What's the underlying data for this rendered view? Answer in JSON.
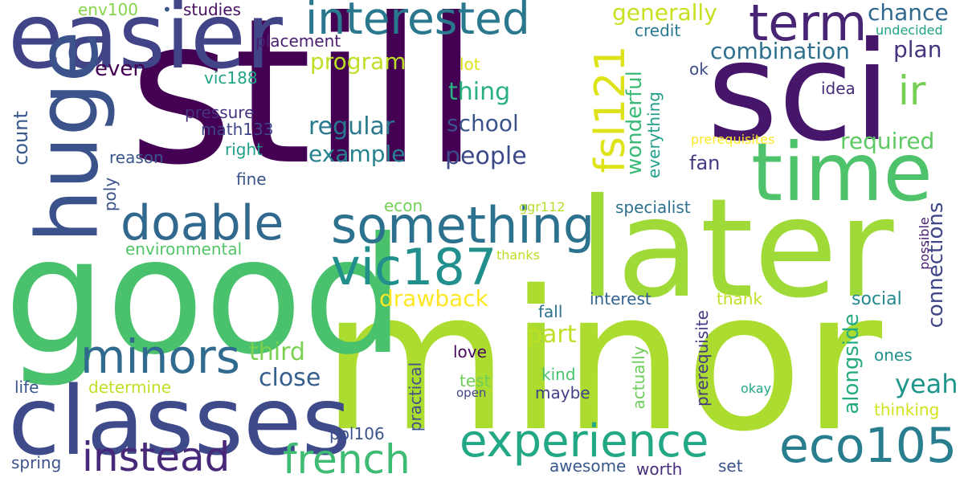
{
  "words": [
    {
      "text": "still",
      "color": "#440154",
      "weight": 1.0,
      "orientation": "horizontal"
    },
    {
      "text": "minor",
      "color": "#addc30",
      "weight": 0.95,
      "orientation": "horizontal"
    },
    {
      "text": "good",
      "color": "#4ac16d",
      "weight": 0.8,
      "orientation": "horizontal"
    },
    {
      "text": "later",
      "color": "#a0da39",
      "weight": 0.75,
      "orientation": "horizontal"
    },
    {
      "text": "sci",
      "color": "#46166b",
      "weight": 0.7,
      "orientation": "horizontal"
    },
    {
      "text": "classes",
      "color": "#3e4a89",
      "weight": 0.6,
      "orientation": "horizontal"
    },
    {
      "text": "easier",
      "color": "#414487",
      "weight": 0.55,
      "orientation": "horizontal"
    },
    {
      "text": "huge",
      "color": "#3b528b",
      "weight": 0.55,
      "orientation": "vertical"
    },
    {
      "text": "time",
      "color": "#4ec36b",
      "weight": 0.5,
      "orientation": "horizontal"
    },
    {
      "text": "term",
      "color": "#482475",
      "weight": 0.35,
      "orientation": "horizontal"
    },
    {
      "text": "something",
      "color": "#2c728e",
      "weight": 0.35,
      "orientation": "horizontal"
    },
    {
      "text": "doable",
      "color": "#31688e",
      "weight": 0.35,
      "orientation": "horizontal"
    },
    {
      "text": "minors",
      "color": "#306a8e",
      "weight": 0.35,
      "orientation": "horizontal"
    },
    {
      "text": "vic187",
      "color": "#21908d",
      "weight": 0.35,
      "orientation": "horizontal"
    },
    {
      "text": "eco105",
      "color": "#287d8e",
      "weight": 0.35,
      "orientation": "horizontal"
    },
    {
      "text": "experience",
      "color": "#22a884",
      "weight": 0.35,
      "orientation": "horizontal"
    },
    {
      "text": "interested",
      "color": "#2a788e",
      "weight": 0.33,
      "orientation": "horizontal"
    },
    {
      "text": "instead",
      "color": "#482878",
      "weight": 0.3,
      "orientation": "horizontal"
    },
    {
      "text": "french",
      "color": "#3fbc73",
      "weight": 0.3,
      "orientation": "horizontal"
    },
    {
      "text": "fsl121",
      "color": "#dde318",
      "weight": 0.3,
      "orientation": "vertical"
    },
    {
      "text": "ir",
      "color": "#75d054",
      "weight": 0.28,
      "orientation": "horizontal"
    },
    {
      "text": "plan",
      "color": "#46337e",
      "weight": 0.2,
      "orientation": "horizontal"
    },
    {
      "text": "combination",
      "color": "#2e6f8e",
      "weight": 0.2,
      "orientation": "horizontal"
    },
    {
      "text": "chance",
      "color": "#31688e",
      "weight": 0.2,
      "orientation": "horizontal"
    },
    {
      "text": "generally",
      "color": "#c8e020",
      "weight": 0.2,
      "orientation": "horizontal"
    },
    {
      "text": "program",
      "color": "#bddf26",
      "weight": 0.2,
      "orientation": "horizontal"
    },
    {
      "text": "thing",
      "color": "#2ab07f",
      "weight": 0.2,
      "orientation": "horizontal"
    },
    {
      "text": "regular",
      "color": "#29798e",
      "weight": 0.2,
      "orientation": "horizontal"
    },
    {
      "text": "school",
      "color": "#3b528b",
      "weight": 0.2,
      "orientation": "horizontal"
    },
    {
      "text": "example",
      "color": "#26828e",
      "weight": 0.2,
      "orientation": "horizontal"
    },
    {
      "text": "people",
      "color": "#3e4989",
      "weight": 0.2,
      "orientation": "horizontal"
    },
    {
      "text": "required",
      "color": "#5ec962",
      "weight": 0.2,
      "orientation": "horizontal"
    },
    {
      "text": "wonderful",
      "color": "#3aba76",
      "weight": 0.2,
      "orientation": "vertical"
    },
    {
      "text": "connections",
      "color": "#3f4788",
      "weight": 0.2,
      "orientation": "vertical"
    },
    {
      "text": "drawback",
      "color": "#fde725",
      "weight": 0.2,
      "orientation": "horizontal"
    },
    {
      "text": "part",
      "color": "#bddf26",
      "weight": 0.2,
      "orientation": "horizontal"
    },
    {
      "text": "third",
      "color": "#7ad151",
      "weight": 0.2,
      "orientation": "horizontal"
    },
    {
      "text": "close",
      "color": "#355f8d",
      "weight": 0.2,
      "orientation": "horizontal"
    },
    {
      "text": "alongside",
      "color": "#25ab82",
      "weight": 0.2,
      "orientation": "vertical"
    },
    {
      "text": "yeah",
      "color": "#1f968b",
      "weight": 0.2,
      "orientation": "horizontal"
    },
    {
      "text": "even",
      "color": "#440154",
      "weight": 0.15,
      "orientation": "horizontal"
    },
    {
      "text": "fan",
      "color": "#443983",
      "weight": 0.15,
      "orientation": "horizontal"
    },
    {
      "text": "count",
      "color": "#38598c",
      "weight": 0.15,
      "orientation": "vertical"
    },
    {
      "text": "placement",
      "color": "#481f70",
      "weight": 0.12,
      "orientation": "horizontal"
    },
    {
      "text": "credit",
      "color": "#2a788e",
      "weight": 0.12,
      "orientation": "horizontal"
    },
    {
      "text": "undecided",
      "color": "#20a386",
      "weight": 0.1,
      "orientation": "horizontal"
    },
    {
      "text": "env100",
      "color": "#86d549",
      "weight": 0.12,
      "orientation": "horizontal"
    },
    {
      "text": "studies",
      "color": "#471063",
      "weight": 0.12,
      "orientation": "horizontal"
    },
    {
      "text": "lot",
      "color": "#dde318",
      "weight": 0.12,
      "orientation": "horizontal"
    },
    {
      "text": "vic188",
      "color": "#20a486",
      "weight": 0.12,
      "orientation": "horizontal"
    },
    {
      "text": "ok",
      "color": "#3e4c8a",
      "weight": 0.12,
      "orientation": "horizontal"
    },
    {
      "text": "idea",
      "color": "#472c7a",
      "weight": 0.12,
      "orientation": "horizontal"
    },
    {
      "text": "pressure",
      "color": "#46327e",
      "weight": 0.12,
      "orientation": "horizontal"
    },
    {
      "text": "math133",
      "color": "#404688",
      "weight": 0.12,
      "orientation": "horizontal"
    },
    {
      "text": "right",
      "color": "#1fa188",
      "weight": 0.12,
      "orientation": "horizontal"
    },
    {
      "text": "reason",
      "color": "#39568c",
      "weight": 0.12,
      "orientation": "horizontal"
    },
    {
      "text": "fine",
      "color": "#3b528b",
      "weight": 0.12,
      "orientation": "horizontal"
    },
    {
      "text": "poly",
      "color": "#3b528b",
      "weight": 0.12,
      "orientation": "vertical"
    },
    {
      "text": "everything",
      "color": "#1f9e89",
      "weight": 0.12,
      "orientation": "vertical"
    },
    {
      "text": "prerequisites",
      "color": "#fde725",
      "weight": 0.1,
      "orientation": "horizontal"
    },
    {
      "text": "econ",
      "color": "#73d056",
      "weight": 0.12,
      "orientation": "horizontal"
    },
    {
      "text": "ggr112",
      "color": "#b5de2b",
      "weight": 0.1,
      "orientation": "horizontal"
    },
    {
      "text": "specialist",
      "color": "#2d718e",
      "weight": 0.12,
      "orientation": "horizontal"
    },
    {
      "text": "environmental",
      "color": "#52c569",
      "weight": 0.12,
      "orientation": "horizontal"
    },
    {
      "text": "thanks",
      "color": "#bddf26",
      "weight": 0.1,
      "orientation": "horizontal"
    },
    {
      "text": "possible",
      "color": "#481c6e",
      "weight": 0.1,
      "orientation": "vertical"
    },
    {
      "text": "fall",
      "color": "#2d708e",
      "weight": 0.12,
      "orientation": "horizontal"
    },
    {
      "text": "interest",
      "color": "#33628d",
      "weight": 0.12,
      "orientation": "horizontal"
    },
    {
      "text": "thank",
      "color": "#c0df25",
      "weight": 0.12,
      "orientation": "horizontal"
    },
    {
      "text": "social",
      "color": "#23898e",
      "weight": 0.12,
      "orientation": "horizontal"
    },
    {
      "text": "prerequisite",
      "color": "#443a83",
      "weight": 0.12,
      "orientation": "vertical"
    },
    {
      "text": "actually",
      "color": "#6ccd5a",
      "weight": 0.12,
      "orientation": "vertical"
    },
    {
      "text": "love",
      "color": "#46085c",
      "weight": 0.12,
      "orientation": "horizontal"
    },
    {
      "text": "ones",
      "color": "#21918c",
      "weight": 0.12,
      "orientation": "horizontal"
    },
    {
      "text": "practical",
      "color": "#3b528b",
      "weight": 0.12,
      "orientation": "vertical"
    },
    {
      "text": "kind",
      "color": "#4ac16d",
      "weight": 0.12,
      "orientation": "horizontal"
    },
    {
      "text": "test",
      "color": "#6ece58",
      "weight": 0.12,
      "orientation": "horizontal"
    },
    {
      "text": "life",
      "color": "#39558c",
      "weight": 0.12,
      "orientation": "horizontal"
    },
    {
      "text": "determine",
      "color": "#c2df23",
      "weight": 0.12,
      "orientation": "horizontal"
    },
    {
      "text": "maybe",
      "color": "#424086",
      "weight": 0.12,
      "orientation": "horizontal"
    },
    {
      "text": "okay",
      "color": "#22a785",
      "weight": 0.1,
      "orientation": "horizontal"
    },
    {
      "text": "thinking",
      "color": "#d2e21b",
      "weight": 0.12,
      "orientation": "horizontal"
    },
    {
      "text": "open",
      "color": "#414487",
      "weight": 0.1,
      "orientation": "horizontal"
    },
    {
      "text": "pol106",
      "color": "#3b528b",
      "weight": 0.12,
      "orientation": "horizontal"
    },
    {
      "text": "spring",
      "color": "#3b528b",
      "weight": 0.12,
      "orientation": "horizontal"
    },
    {
      "text": "awesome",
      "color": "#38588c",
      "weight": 0.12,
      "orientation": "horizontal"
    },
    {
      "text": "worth",
      "color": "#472e7c",
      "weight": 0.12,
      "orientation": "horizontal"
    },
    {
      "text": "set",
      "color": "#3a538b",
      "weight": 0.12,
      "orientation": "horizontal"
    }
  ]
}
